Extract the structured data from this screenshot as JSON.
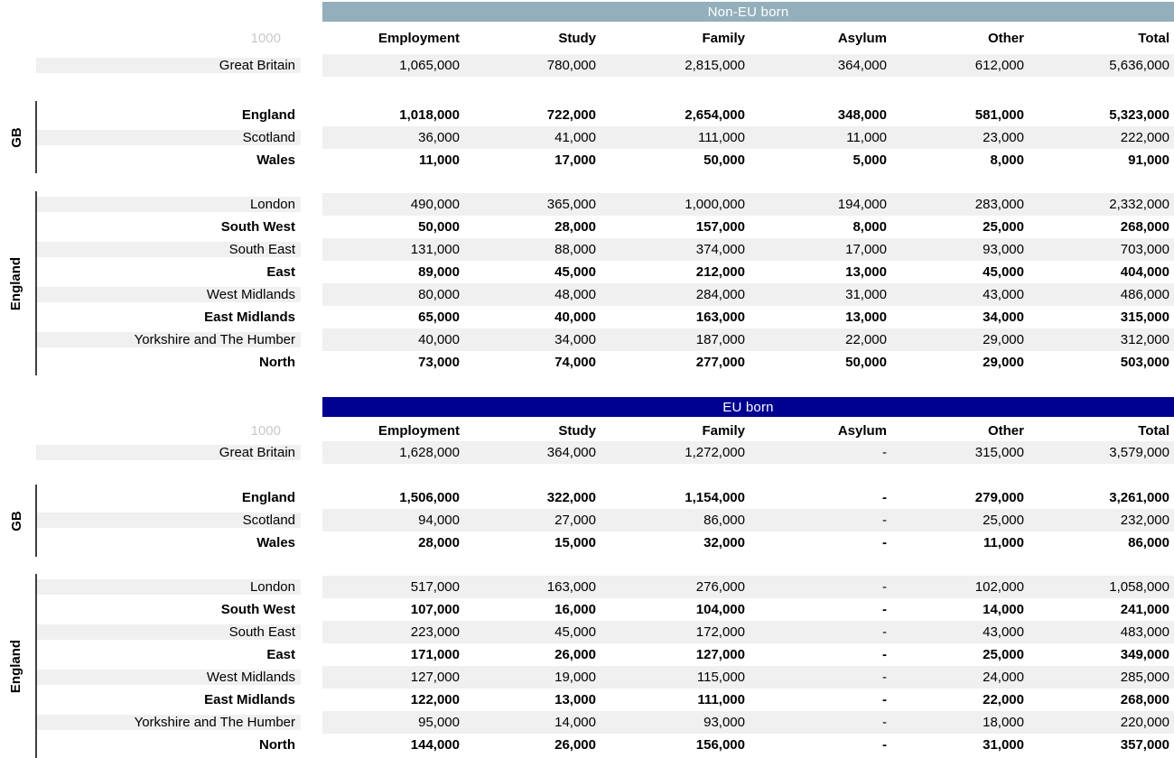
{
  "colors": {
    "non_eu_title_bg": "#93AFBB",
    "eu_title_bg": "#000090",
    "title_text": "#FFFFFF",
    "row_stripe": "#F0F0F0",
    "group_line": "#404040",
    "unit_label_color": "#C9C9C9",
    "body_text": "#000000"
  },
  "chart_data": [
    {
      "type": "table",
      "title": "Non-EU born",
      "unit": "1000",
      "columns": [
        "Employment",
        "Study",
        "Family",
        "Asylum",
        "Other",
        "Total"
      ],
      "sections": [
        {
          "group": "",
          "rows": [
            {
              "label": "Great Britain",
              "bold": false,
              "values": [
                "1,065,000",
                "780,000",
                "2,815,000",
                "364,000",
                "612,000",
                "5,636,000"
              ]
            }
          ]
        },
        {
          "group": "GB",
          "rows": [
            {
              "label": "England",
              "bold": true,
              "values": [
                "1,018,000",
                "722,000",
                "2,654,000",
                "348,000",
                "581,000",
                "5,323,000"
              ]
            },
            {
              "label": "Scotland",
              "bold": false,
              "values": [
                "36,000",
                "41,000",
                "111,000",
                "11,000",
                "23,000",
                "222,000"
              ]
            },
            {
              "label": "Wales",
              "bold": true,
              "values": [
                "11,000",
                "17,000",
                "50,000",
                "5,000",
                "8,000",
                "91,000"
              ]
            }
          ]
        },
        {
          "group": "England",
          "rows": [
            {
              "label": "London",
              "bold": false,
              "values": [
                "490,000",
                "365,000",
                "1,000,000",
                "194,000",
                "283,000",
                "2,332,000"
              ]
            },
            {
              "label": "South West",
              "bold": true,
              "values": [
                "50,000",
                "28,000",
                "157,000",
                "8,000",
                "25,000",
                "268,000"
              ]
            },
            {
              "label": "South East",
              "bold": false,
              "values": [
                "131,000",
                "88,000",
                "374,000",
                "17,000",
                "93,000",
                "703,000"
              ]
            },
            {
              "label": "East",
              "bold": true,
              "values": [
                "89,000",
                "45,000",
                "212,000",
                "13,000",
                "45,000",
                "404,000"
              ]
            },
            {
              "label": "West Midlands",
              "bold": false,
              "values": [
                "80,000",
                "48,000",
                "284,000",
                "31,000",
                "43,000",
                "486,000"
              ]
            },
            {
              "label": "East Midlands",
              "bold": true,
              "values": [
                "65,000",
                "40,000",
                "163,000",
                "13,000",
                "34,000",
                "315,000"
              ]
            },
            {
              "label": "Yorkshire and The Humber",
              "bold": false,
              "values": [
                "40,000",
                "34,000",
                "187,000",
                "22,000",
                "29,000",
                "312,000"
              ]
            },
            {
              "label": "North",
              "bold": true,
              "values": [
                "73,000",
                "74,000",
                "277,000",
                "50,000",
                "29,000",
                "503,000"
              ]
            }
          ]
        }
      ]
    },
    {
      "type": "table",
      "title": "EU born",
      "unit": "1000",
      "columns": [
        "Employment",
        "Study",
        "Family",
        "Asylum",
        "Other",
        "Total"
      ],
      "sections": [
        {
          "group": "",
          "rows": [
            {
              "label": "Great Britain",
              "bold": false,
              "values": [
                "1,628,000",
                "364,000",
                "1,272,000",
                "-",
                "315,000",
                "3,579,000"
              ]
            }
          ]
        },
        {
          "group": "GB",
          "rows": [
            {
              "label": "England",
              "bold": true,
              "values": [
                "1,506,000",
                "322,000",
                "1,154,000",
                "-",
                "279,000",
                "3,261,000"
              ]
            },
            {
              "label": "Scotland",
              "bold": false,
              "values": [
                "94,000",
                "27,000",
                "86,000",
                "-",
                "25,000",
                "232,000"
              ]
            },
            {
              "label": "Wales",
              "bold": true,
              "values": [
                "28,000",
                "15,000",
                "32,000",
                "-",
                "11,000",
                "86,000"
              ]
            }
          ]
        },
        {
          "group": "England",
          "rows": [
            {
              "label": "London",
              "bold": false,
              "values": [
                "517,000",
                "163,000",
                "276,000",
                "-",
                "102,000",
                "1,058,000"
              ]
            },
            {
              "label": "South West",
              "bold": true,
              "values": [
                "107,000",
                "16,000",
                "104,000",
                "-",
                "14,000",
                "241,000"
              ]
            },
            {
              "label": "South East",
              "bold": false,
              "values": [
                "223,000",
                "45,000",
                "172,000",
                "-",
                "43,000",
                "483,000"
              ]
            },
            {
              "label": "East",
              "bold": true,
              "values": [
                "171,000",
                "26,000",
                "127,000",
                "-",
                "25,000",
                "349,000"
              ]
            },
            {
              "label": "West Midlands",
              "bold": false,
              "values": [
                "127,000",
                "19,000",
                "115,000",
                "-",
                "24,000",
                "285,000"
              ]
            },
            {
              "label": "East Midlands",
              "bold": true,
              "values": [
                "122,000",
                "13,000",
                "111,000",
                "-",
                "22,000",
                "268,000"
              ]
            },
            {
              "label": "Yorkshire and The Humber",
              "bold": false,
              "values": [
                "95,000",
                "14,000",
                "93,000",
                "-",
                "18,000",
                "220,000"
              ]
            },
            {
              "label": "North",
              "bold": true,
              "values": [
                "144,000",
                "26,000",
                "156,000",
                "-",
                "31,000",
                "357,000"
              ]
            }
          ]
        }
      ]
    }
  ]
}
